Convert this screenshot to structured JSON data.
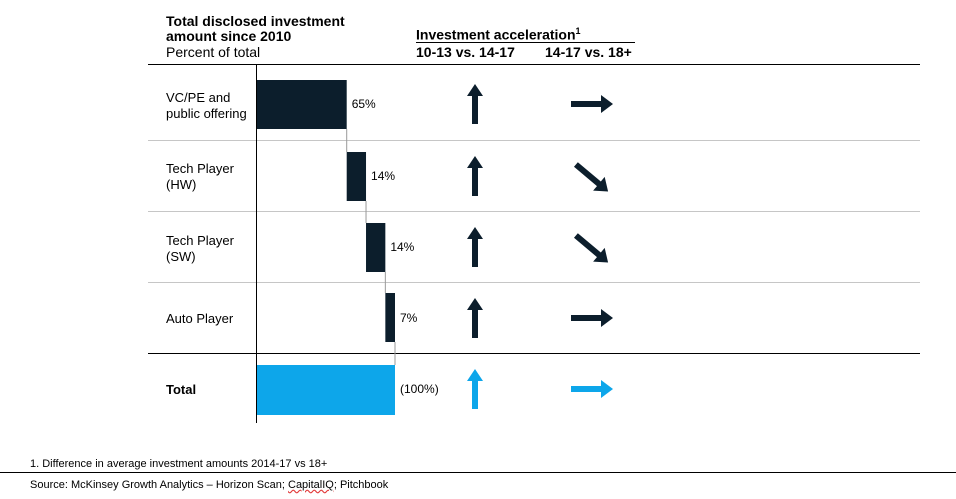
{
  "header": {
    "title_line1": "Total disclosed investment",
    "title_line2": "amount since 2010",
    "subtitle": "Percent of total",
    "acceleration_title": "Investment acceleration",
    "acceleration_sup": "1",
    "col1": "10-13 vs. 14-17",
    "col2": "14-17 vs. 18+"
  },
  "rows": [
    {
      "label_line1": "VC/PE and",
      "label_line2": "public offering"
    },
    {
      "label_line1": "Tech Player",
      "label_line2": "(HW)"
    },
    {
      "label_line1": "Tech Player",
      "label_line2": "(SW)"
    },
    {
      "label_line1": "Auto Player",
      "label_line2": ""
    },
    {
      "label_line1": "Total",
      "label_line2": ""
    }
  ],
  "chart_data": {
    "type": "bar",
    "variant": "waterfall",
    "title": "Total disclosed investment amount since 2010",
    "subtitle": "Percent of total",
    "categories": [
      "VC/PE and public offering",
      "Tech Player (HW)",
      "Tech Player (SW)",
      "Auto Player",
      "Total"
    ],
    "values": [
      65,
      14,
      14,
      7,
      100
    ],
    "value_labels": [
      "65%",
      "14%",
      "14%",
      "7%",
      "(100%)"
    ],
    "ylim": [
      0,
      100
    ],
    "colors": {
      "segment": "#0c1e2c",
      "total": "#0da6ea"
    },
    "acceleration": {
      "10-13 vs. 14-17": [
        "up",
        "up",
        "up",
        "up",
        "up"
      ],
      "14-17 vs. 18+": [
        "right",
        "down-right",
        "down-right",
        "right",
        "right"
      ]
    }
  },
  "footnote": "1.    Difference in average investment amounts 2014-17 vs 18+",
  "source_prefix": "Source: McKinsey Growth Analytics – Horizon Scan; ",
  "source_ul": "CapitalIQ",
  "source_suffix": "; Pitchbook"
}
